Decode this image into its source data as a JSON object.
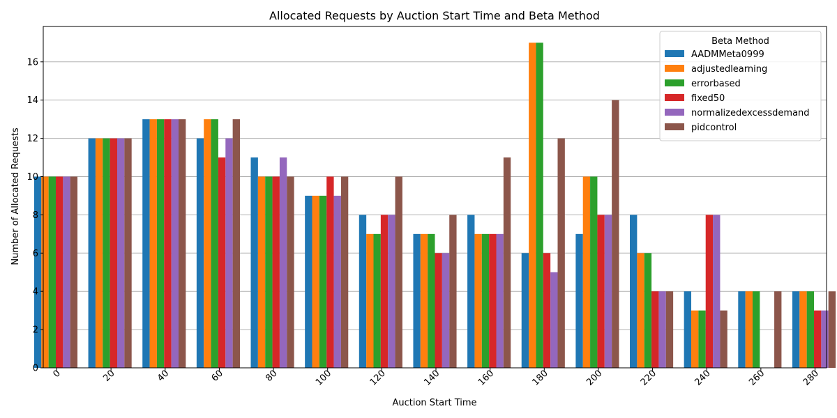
{
  "chart_data": {
    "type": "bar",
    "title": "Allocated Requests by Auction Start Time and Beta Method",
    "xlabel": "Auction Start Time",
    "ylabel": "Number of Allocated Requests",
    "ylim": [
      0,
      17.85
    ],
    "yticks": [
      0,
      2,
      4,
      6,
      8,
      10,
      12,
      14,
      16
    ],
    "grid": "y",
    "legend": {
      "title": "Beta Method",
      "placement": "top-right"
    },
    "categories": [
      "0",
      "20",
      "40",
      "60",
      "80",
      "100",
      "120",
      "140",
      "160",
      "180",
      "200",
      "220",
      "240",
      "260",
      "280"
    ],
    "series": [
      {
        "name": "AADMMeta0999",
        "color": "#1f77b4",
        "values": [
          10,
          12,
          13,
          12,
          11,
          9,
          8,
          7,
          8,
          6,
          7,
          8,
          4,
          4,
          4
        ]
      },
      {
        "name": "adjustedlearning",
        "color": "#ff7f0e",
        "values": [
          10,
          12,
          13,
          13,
          10,
          9,
          7,
          7,
          7,
          17,
          10,
          6,
          3,
          4,
          4
        ]
      },
      {
        "name": "errorbased",
        "color": "#2ca02c",
        "values": [
          10,
          12,
          13,
          13,
          10,
          9,
          7,
          7,
          7,
          17,
          10,
          6,
          3,
          4,
          4
        ]
      },
      {
        "name": "fixed50",
        "color": "#d62728",
        "values": [
          10,
          12,
          13,
          11,
          10,
          10,
          8,
          6,
          7,
          6,
          8,
          4,
          8,
          0,
          3
        ]
      },
      {
        "name": "normalizedexcessdemand",
        "color": "#9467bd",
        "values": [
          10,
          12,
          13,
          12,
          11,
          9,
          8,
          6,
          7,
          5,
          8,
          4,
          8,
          0,
          3
        ]
      },
      {
        "name": "pidcontrol",
        "color": "#8c564b",
        "values": [
          10,
          12,
          13,
          13,
          10,
          10,
          10,
          8,
          11,
          12,
          14,
          4,
          3,
          4,
          4
        ]
      }
    ]
  }
}
